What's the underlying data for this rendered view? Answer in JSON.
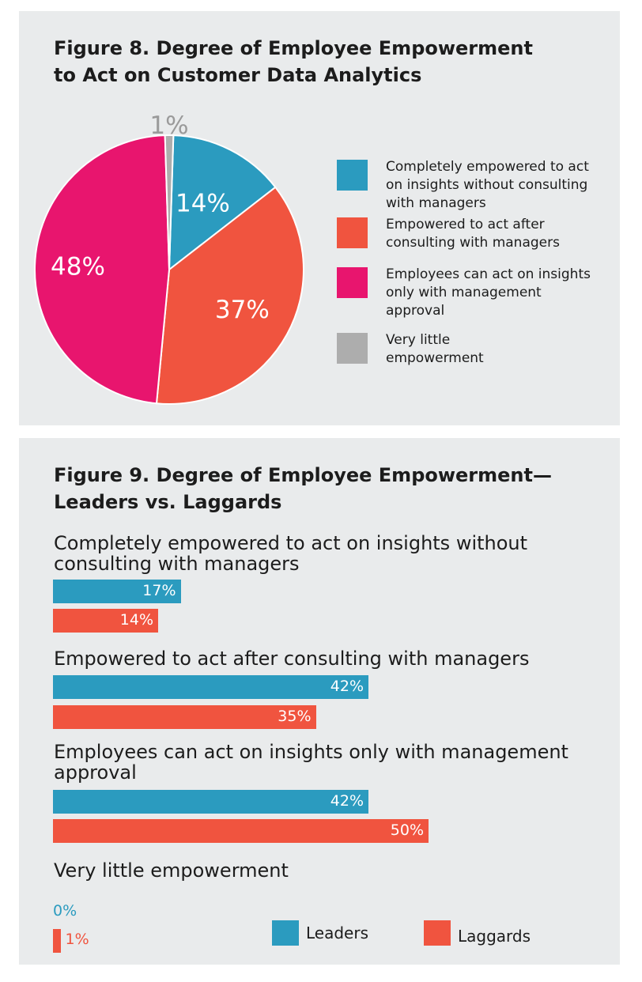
{
  "colors": {
    "blue": "#2b9bbf",
    "orange": "#f0543f",
    "pink": "#e8156e",
    "gray": "#adadad",
    "panel": "#e9ebec"
  },
  "figure8": {
    "title": "Figure 8. Degree of Employee Empowerment to Act on Customer Data Analytics"
  },
  "figure9": {
    "title": "Figure 9. Degree of Employee Empowerment— Leaders vs. Laggards"
  },
  "legend9": {
    "leaders": "Leaders",
    "laggards": "Laggards"
  },
  "chart_data": [
    {
      "type": "pie",
      "title": "Figure 8. Degree of Employee Empowerment to Act on Customer Data Analytics",
      "start_angle_deg": 1.8,
      "slices": [
        {
          "label": "Completely empowered to act on insights without consulting with managers",
          "value": 14,
          "display": "14%",
          "color": "#2b9bbf"
        },
        {
          "label": "Empowered to act after consulting with managers",
          "value": 37,
          "display": "37%",
          "color": "#f0543f"
        },
        {
          "label": "Employees can act on insights only with management approval",
          "value": 48,
          "display": "48%",
          "color": "#e8156e"
        },
        {
          "label": "Very little empowerment",
          "value": 1,
          "display": "1%",
          "color": "#adadad"
        }
      ],
      "legend_position": "right"
    },
    {
      "type": "bar",
      "orientation": "horizontal",
      "title": "Figure 9. Degree of Employee Empowerment— Leaders vs. Laggards",
      "categories": [
        "Completely empowered to act on insights without consulting with managers",
        "Empowered to act after consulting with managers",
        "Employees can act on insights only with management approval",
        "Very little empowerment"
      ],
      "series": [
        {
          "name": "Leaders",
          "color": "#2b9bbf",
          "values": [
            17,
            42,
            42,
            0
          ],
          "labels": [
            "17%",
            "42%",
            "42%",
            "0%"
          ]
        },
        {
          "name": "Laggards",
          "color": "#f0543f",
          "values": [
            14,
            35,
            50,
            1
          ],
          "labels": [
            "14%",
            "35%",
            "50%",
            "1%"
          ]
        }
      ],
      "legend_position": "bottom-right"
    }
  ]
}
